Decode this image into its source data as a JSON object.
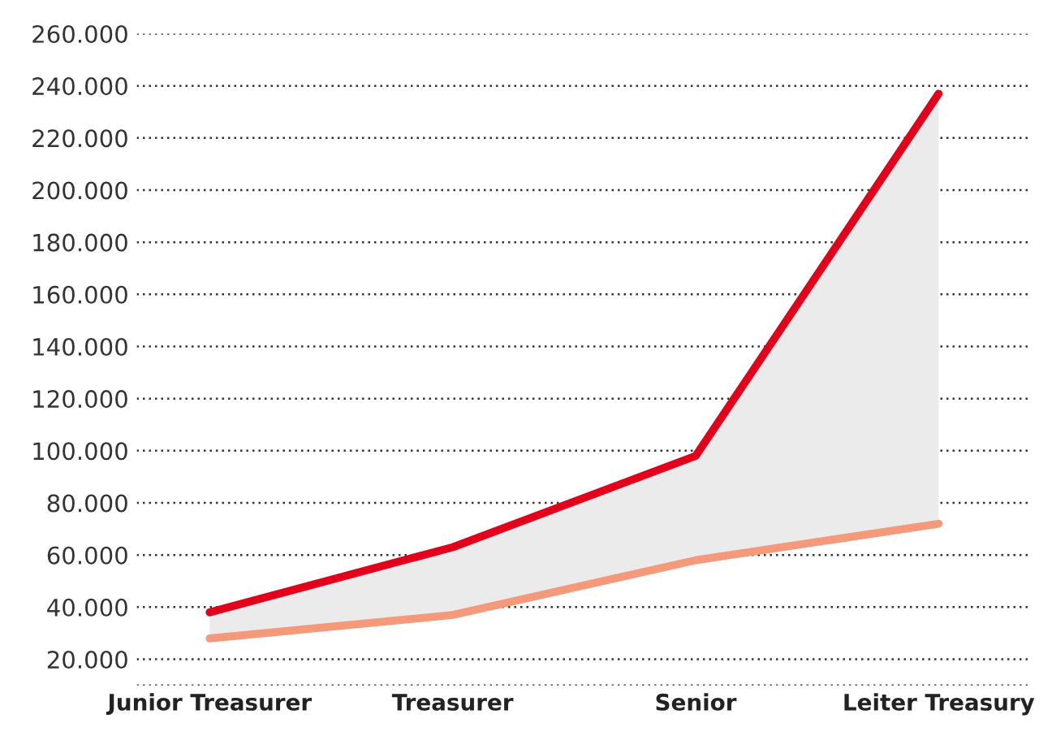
{
  "chart_data": {
    "type": "line",
    "categories": [
      "Junior Treasurer",
      "Treasurer",
      "Senior",
      "Leiter Treasury"
    ],
    "series": [
      {
        "color": "#e2001a",
        "values": [
          38000,
          63000,
          98000,
          237000
        ],
        "lower": [
          28000,
          37000,
          58000,
          72000
        ],
        "upper": [
          38000,
          63000,
          98000,
          237000
        ]
      },
      {
        "color": "#f4997a",
        "values": [
          28000,
          37000,
          58000,
          72000
        ]
      }
    ],
    "ylim": [
      10000,
      260000
    ],
    "yticks": [
      {
        "value": 10000,
        "label": null
      },
      {
        "value": 20000,
        "label": "20.000"
      },
      {
        "value": 40000,
        "label": "40.000"
      },
      {
        "value": 60000,
        "label": "60.000"
      },
      {
        "value": 80000,
        "label": "80.000"
      },
      {
        "value": 100000,
        "label": "100.000"
      },
      {
        "value": 120000,
        "label": "120.000"
      },
      {
        "value": 140000,
        "label": "140.000"
      },
      {
        "value": 160000,
        "label": "160.000"
      },
      {
        "value": 180000,
        "label": "180.000"
      },
      {
        "value": 200000,
        "label": "200.000"
      },
      {
        "value": 220000,
        "label": "220.000"
      },
      {
        "value": 240000,
        "label": "240.000"
      },
      {
        "value": 260000,
        "label": "260.000"
      }
    ],
    "grid": "y",
    "legend": false,
    "marker": "none",
    "line_style": "solid"
  }
}
